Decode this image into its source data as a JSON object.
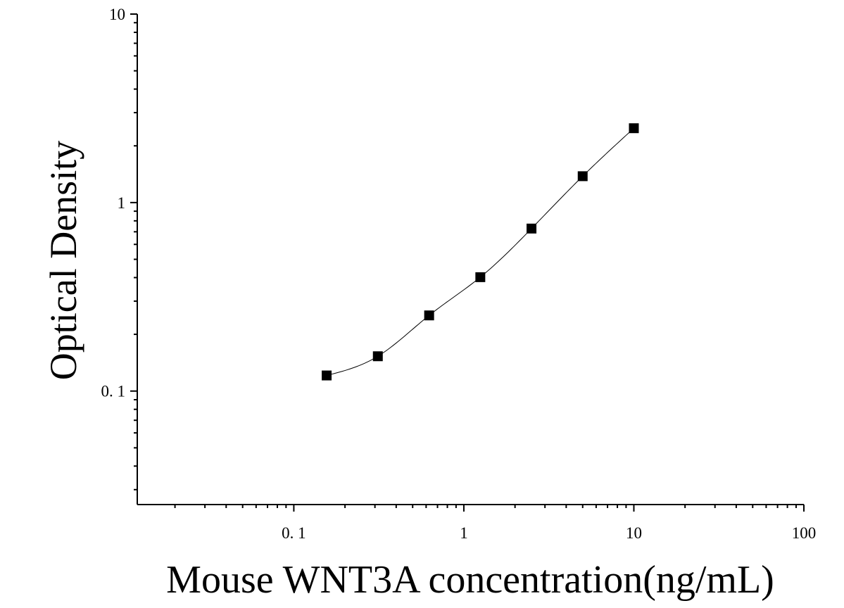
{
  "chart_data": {
    "type": "scatter",
    "title": "",
    "xlabel": "Mouse WNT3A concentration(ng/mL)",
    "ylabel": "Optical Density",
    "x_scale": "log",
    "y_scale": "log",
    "xlim": [
      0.012,
      100
    ],
    "ylim": [
      0.025,
      10
    ],
    "x_ticks": [
      {
        "value": 0.1,
        "label": "0. 1"
      },
      {
        "value": 1,
        "label": "1"
      },
      {
        "value": 10,
        "label": "10"
      },
      {
        "value": 100,
        "label": "100"
      }
    ],
    "y_ticks": [
      {
        "value": 0.1,
        "label": "0. 1"
      },
      {
        "value": 1,
        "label": "1"
      },
      {
        "value": 10,
        "label": "10"
      }
    ],
    "grid": false,
    "legend": "none",
    "series": [
      {
        "x": [
          0.156,
          0.312,
          0.625,
          1.25,
          2.5,
          5,
          10
        ],
        "y": [
          0.121,
          0.153,
          0.252,
          0.402,
          0.728,
          1.38,
          2.48
        ],
        "marker": "square",
        "color": "#000000",
        "fit_line": true
      }
    ]
  }
}
